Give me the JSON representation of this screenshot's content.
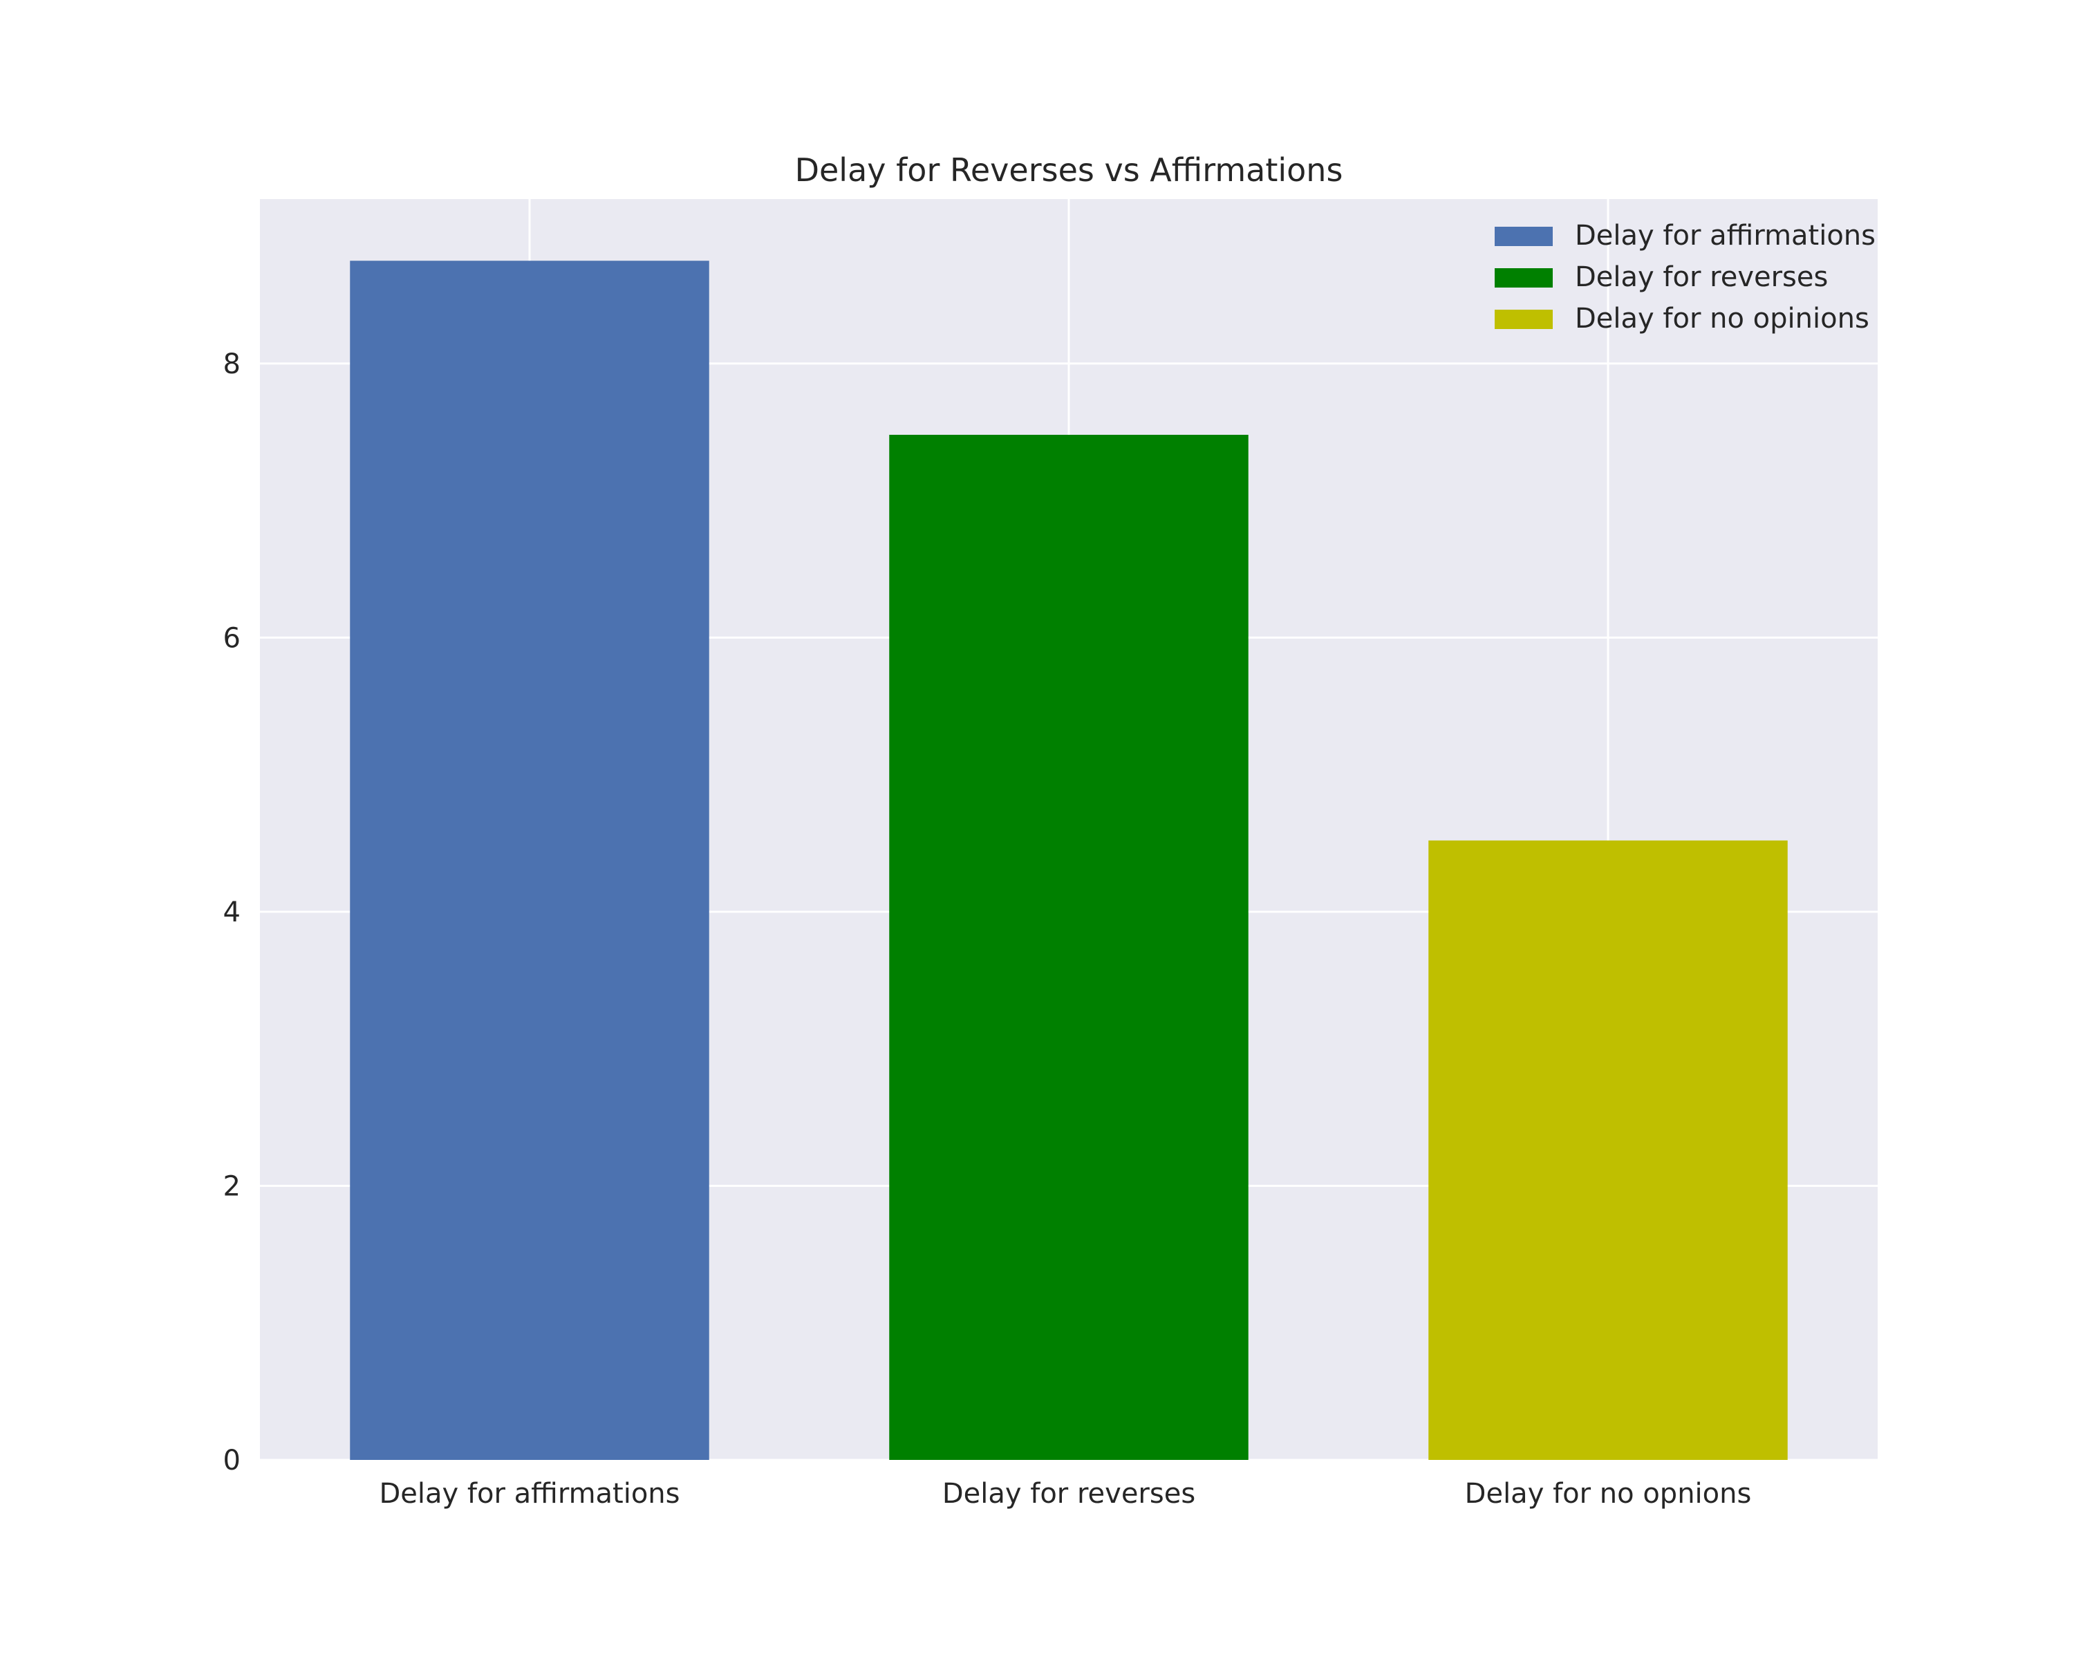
{
  "chart_data": {
    "type": "bar",
    "title": "Delay for Reverses vs Affirmations",
    "xlabel": "",
    "ylabel": "",
    "categories": [
      "Delay for affirmations",
      "Delay for reverses",
      "Delay for no opnions"
    ],
    "values": [
      8.75,
      7.48,
      4.52
    ],
    "colors": [
      "#4c72b0",
      "#008000",
      "#bfbf00"
    ],
    "ylim": [
      0,
      9.2
    ],
    "yticks": [
      0,
      2,
      4,
      6,
      8
    ],
    "ytick_labels": [
      "0",
      "2",
      "4",
      "6",
      "8"
    ],
    "grid": true,
    "background": "#eaeaf2",
    "legend": {
      "position": "top-right",
      "entries": [
        {
          "label": "Delay for affirmations",
          "color": "#4c72b0"
        },
        {
          "label": "Delay for reverses",
          "color": "#008000"
        },
        {
          "label": "Delay for no opinions",
          "color": "#bfbf00"
        }
      ]
    }
  }
}
